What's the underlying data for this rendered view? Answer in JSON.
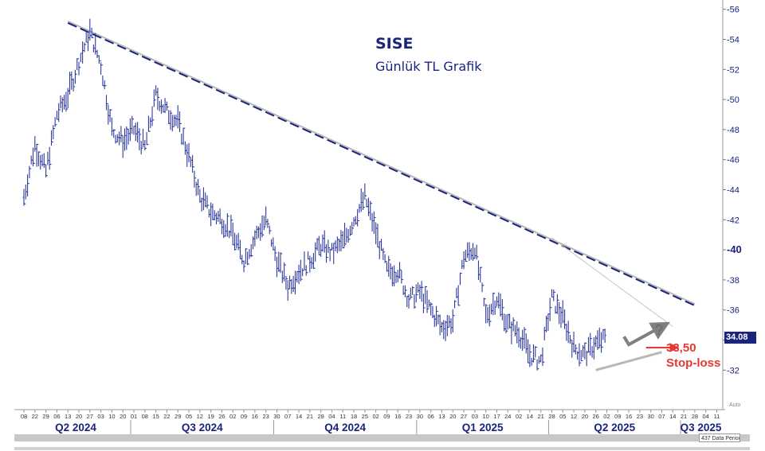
{
  "chart_data": {
    "type": "ohlc-bar",
    "title": "SISE",
    "subtitle": "Günlük TL Grafik",
    "y_ticks": [
      32,
      34,
      36,
      38,
      40,
      42,
      44,
      46,
      48,
      50,
      52,
      54,
      56
    ],
    "y_tick_labels": [
      "32",
      "",
      "36",
      "38",
      "40",
      "42",
      "44",
      "46",
      "48",
      "50",
      "52",
      "54",
      "56"
    ],
    "ylim": [
      30.8,
      56.3
    ],
    "last_price_label": "34.08",
    "stop_loss": {
      "value": 33.5,
      "value_label": "33,50",
      "label": "Stop-loss"
    },
    "question_mark": "?",
    "x_day_labels": [
      "08",
      "22",
      "29",
      "06",
      "13",
      "20",
      "27",
      "03",
      "10",
      "20",
      "01",
      "08",
      "15",
      "22",
      "29",
      "05",
      "12",
      "19",
      "26",
      "02",
      "09",
      "16",
      "23",
      "30",
      "07",
      "14",
      "21",
      "28",
      "04",
      "11",
      "18",
      "25",
      "02",
      "09",
      "16",
      "23",
      "30",
      "06",
      "13",
      "20",
      "27",
      "03",
      "10",
      "17",
      "24",
      "02",
      "14",
      "21",
      "28",
      "05",
      "12",
      "20",
      "26",
      "02",
      "09",
      "16",
      "23",
      "30",
      "07",
      "14",
      "21",
      "28",
      "04",
      "11"
    ],
    "quarters": [
      {
        "label": "Q2 2024",
        "start": 0,
        "end": 10
      },
      {
        "label": "Q3 2024",
        "start": 10,
        "end": 23
      },
      {
        "label": "Q4 2024",
        "start": 23,
        "end": 36
      },
      {
        "label": "Q1 2025",
        "start": 36,
        "end": 48
      },
      {
        "label": "Q2 2025",
        "start": 48,
        "end": 60
      },
      {
        "label": "Q3 2025",
        "start": 60,
        "end": 64
      }
    ],
    "data_period_label": "437 Data Period",
    "auto_label": "Auto",
    "price_path": [
      [
        0,
        43.5
      ],
      [
        1,
        47.0
      ],
      [
        2,
        45.2
      ],
      [
        3,
        49.0
      ],
      [
        4,
        50.3
      ],
      [
        5,
        52.5
      ],
      [
        6,
        54.5
      ],
      [
        7,
        52.3
      ],
      [
        8,
        48.0
      ],
      [
        9,
        47.2
      ],
      [
        10,
        48.0
      ],
      [
        11,
        46.8
      ],
      [
        12,
        50.3
      ],
      [
        13,
        49.2
      ],
      [
        14,
        48.5
      ],
      [
        15,
        46.2
      ],
      [
        16,
        43.5
      ],
      [
        17,
        42.5
      ],
      [
        18,
        42.0
      ],
      [
        19,
        41.0
      ],
      [
        20,
        39.3
      ],
      [
        21,
        40.8
      ],
      [
        22,
        42.0
      ],
      [
        23,
        39.3
      ],
      [
        24,
        37.6
      ],
      [
        25,
        38.6
      ],
      [
        26,
        39.3
      ],
      [
        27,
        40.3
      ],
      [
        28,
        39.8
      ],
      [
        29,
        40.5
      ],
      [
        30,
        42.0
      ],
      [
        31,
        43.5
      ],
      [
        32,
        41.2
      ],
      [
        33,
        38.6
      ],
      [
        34,
        38.6
      ],
      [
        35,
        36.7
      ],
      [
        36,
        37.2
      ],
      [
        37,
        36.0
      ],
      [
        38,
        34.8
      ],
      [
        39,
        35.3
      ],
      [
        40,
        39.5
      ],
      [
        41,
        40.2
      ],
      [
        42,
        35.6
      ],
      [
        43,
        36.8
      ],
      [
        44,
        35.0
      ],
      [
        45,
        34.5
      ],
      [
        46,
        33.0
      ],
      [
        47,
        32.6
      ],
      [
        48,
        36.8
      ],
      [
        49,
        35.5
      ],
      [
        50,
        33.5
      ],
      [
        51,
        33.0
      ],
      [
        52,
        33.8
      ],
      [
        53,
        34.1
      ]
    ],
    "trendlines": [
      {
        "style": "main-resistance",
        "from": [
          4,
          55.2
        ],
        "to": [
          61,
          36.4
        ]
      },
      {
        "style": "secondary-resistance",
        "from": [
          48,
          40.8
        ],
        "to": [
          59,
          34.9
        ]
      },
      {
        "style": "support",
        "from": [
          52,
          32.0
        ],
        "to": [
          58,
          33.2
        ]
      }
    ],
    "arrows": [
      {
        "style": "projected-up",
        "from": [
          55,
          33.7
        ],
        "to": [
          58,
          34.9
        ]
      },
      {
        "style": "stop",
        "from": [
          57,
          33.5
        ],
        "to": [
          59,
          33.5
        ]
      }
    ]
  },
  "colors": {
    "bars": "#2f3a9e",
    "axis_text": "#1a237e",
    "trend_dashed": "#1a237e",
    "trend_grey": "#b8b8b8",
    "stop": "#e53935",
    "band": "#c8c8c8"
  }
}
